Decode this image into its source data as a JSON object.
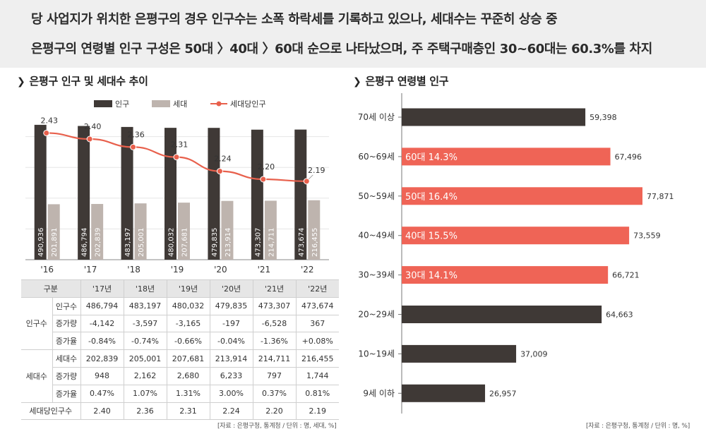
{
  "header": {
    "line1": "당 사업지가 위치한 은평구의 경우 인구수는 소폭 하락세를 기록하고 있으나, 세대수는 꾸준히 상승 중",
    "line2": "은평구의 연령별 인구 구성은 50대 〉40대 〉60대 순으로 나타났으며, 주 주택구매층인 30~60대는 60.3%를 차지"
  },
  "left_section": {
    "title": "은평구 인구 및 세대수 추이"
  },
  "right_section": {
    "title": "은평구 연령별 인구"
  },
  "table": {
    "header": [
      "구분",
      "'17년",
      "'18년",
      "'19년",
      "'20년",
      "'21년",
      "'22년"
    ],
    "groups": [
      {
        "label": "인구수",
        "rows": [
          {
            "label": "인구수",
            "values": [
              "486,794",
              "483,197",
              "480,032",
              "479,835",
              "473,307",
              "473,674"
            ]
          },
          {
            "label": "증가량",
            "values": [
              "-4,142",
              "-3,597",
              "-3,165",
              "-197",
              "-6,528",
              "367"
            ]
          },
          {
            "label": "증가율",
            "values": [
              "-0.84%",
              "-0.74%",
              "-0.66%",
              "-0.04%",
              "-1.36%",
              "+0.08%"
            ]
          }
        ]
      },
      {
        "label": "세대수",
        "rows": [
          {
            "label": "세대수",
            "values": [
              "202,839",
              "205,001",
              "207,681",
              "213,914",
              "214,711",
              "216,455"
            ]
          },
          {
            "label": "증가량",
            "values": [
              "948",
              "2,162",
              "2,680",
              "6,233",
              "797",
              "1,744"
            ]
          },
          {
            "label": "증가율",
            "values": [
              "0.47%",
              "1.07%",
              "1.31%",
              "3.00%",
              "0.37%",
              "0.81%"
            ]
          }
        ]
      }
    ],
    "footer": {
      "label": "세대당인구수",
      "values": [
        "2.40",
        "2.36",
        "2.31",
        "2.24",
        "2.20",
        "2.19"
      ]
    }
  },
  "sources": {
    "left": "[자료 : 은평구청, 통계청 / 단위 : 명, 세대, %]",
    "right": "[자료 : 은평구청, 통계청 / 단위 : 명, %]"
  },
  "colors": {
    "population": "#3f3936",
    "households": "#beb4ae",
    "per_household": "#e8604c",
    "age_dark": "#3f3936",
    "age_highlight": "#ef6456"
  },
  "chart_data": [
    {
      "type": "bar",
      "categories": [
        "'16",
        "'17",
        "'18",
        "'19",
        "'20",
        "'21",
        "'22"
      ],
      "series": [
        {
          "name": "인구",
          "values": [
            490936,
            486794,
            483197,
            480032,
            479835,
            473307,
            473674
          ],
          "labels": [
            "490,936",
            "486,794",
            "483,197",
            "480,032",
            "479,835",
            "473,307",
            "473,674"
          ]
        },
        {
          "name": "세대",
          "values": [
            201891,
            202839,
            205001,
            207681,
            213914,
            214711,
            216455
          ],
          "labels": [
            "201,891",
            "202,839",
            "205,001",
            "207,681",
            "213,914",
            "214,711",
            "216,455"
          ]
        },
        {
          "name": "세대당인구",
          "type": "line",
          "values": [
            2.43,
            2.4,
            2.36,
            2.31,
            2.24,
            2.2,
            2.19
          ],
          "labels": [
            "2.43",
            "2.40",
            "2.36",
            "2.31",
            "2.24",
            "2.20",
            "2.19"
          ]
        }
      ],
      "ylim": [
        0,
        560000
      ],
      "line_ylim": [
        1.8,
        2.6
      ],
      "legend": "top-center",
      "grid": true
    },
    {
      "type": "bar",
      "orientation": "horizontal",
      "categories": [
        "70세 이상",
        "60~69세",
        "50~59세",
        "40~49세",
        "30~39세",
        "20~29세",
        "10~19세",
        "9세 이하"
      ],
      "values": [
        59398,
        67496,
        77871,
        73559,
        66721,
        64663,
        37009,
        26957
      ],
      "value_labels": [
        "59,398",
        "67,496",
        "77,871",
        "73,559",
        "66,721",
        "64,663",
        "37,009",
        "26,957"
      ],
      "highlights": [
        "",
        "60대 14.3%",
        "50대 16.4%",
        "40대 15.5%",
        "30대 14.1%",
        "",
        "",
        ""
      ],
      "xlim": [
        0,
        80000
      ]
    }
  ]
}
